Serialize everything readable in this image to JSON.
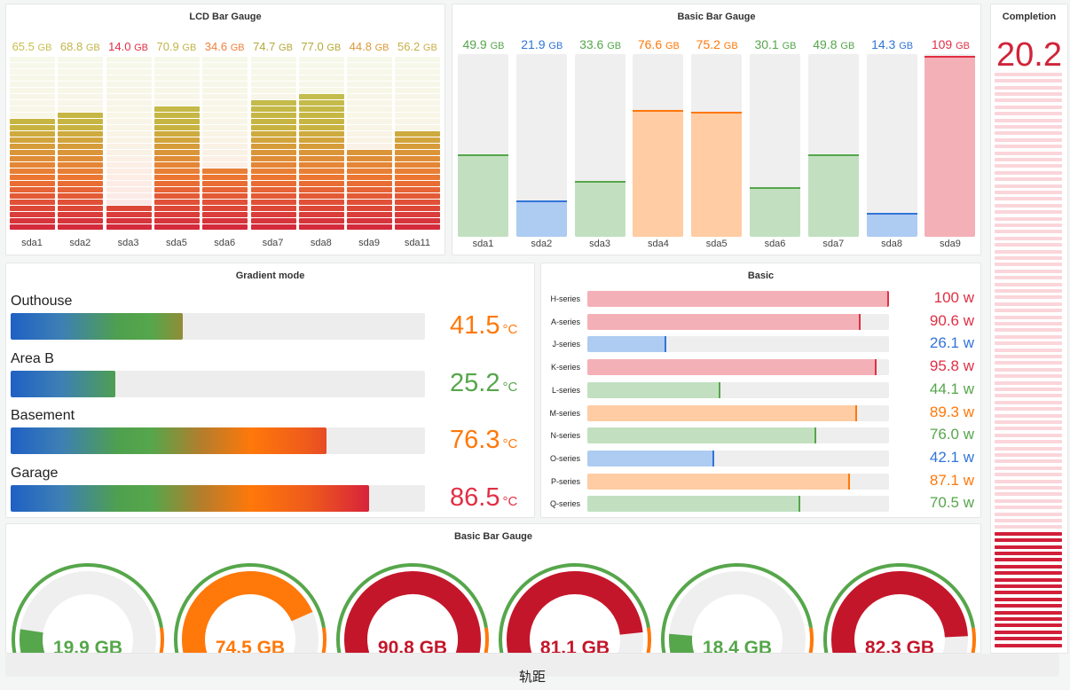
{
  "colors": {
    "green": "#56a64b",
    "green_fill": "#c2e0c0",
    "blue": "#3274d9",
    "blue_fill": "#aecbf2",
    "orange": "#ff780a",
    "orange_fill": "#ffcca3",
    "red": "#e02f44",
    "red_fill": "#f4b0b7",
    "deep_red": "#c4162a",
    "yellow": "#d8c03c"
  },
  "lcd": {
    "title": "LCD Bar Gauge",
    "max": 100,
    "items": [
      {
        "label": "sda1",
        "value": 65.5,
        "num": "65.5",
        "unit": "GB",
        "color": "#c8bf4f"
      },
      {
        "label": "sda2",
        "value": 68.8,
        "num": "68.8",
        "unit": "GB",
        "color": "#c2b449"
      },
      {
        "label": "sda3",
        "value": 14.0,
        "num": "14.0",
        "unit": "GB",
        "color": "#e02f44"
      },
      {
        "label": "sda5",
        "value": 70.9,
        "num": "70.9",
        "unit": "GB",
        "color": "#c2b449"
      },
      {
        "label": "sda6",
        "value": 34.6,
        "num": "34.6",
        "unit": "GB",
        "color": "#f2803a"
      },
      {
        "label": "sda7",
        "value": 74.7,
        "num": "74.7",
        "unit": "GB",
        "color": "#b5a83a"
      },
      {
        "label": "sda8",
        "value": 77.0,
        "num": "77.0",
        "unit": "GB",
        "color": "#b5a83a"
      },
      {
        "label": "sda9",
        "value": 44.8,
        "num": "44.8",
        "unit": "GB",
        "color": "#d89a3c"
      },
      {
        "label": "sda11",
        "value": 56.2,
        "num": "56.2",
        "unit": "GB",
        "color": "#c8af4a"
      }
    ]
  },
  "basic_bar_gauge": {
    "title": "Basic Bar Gauge",
    "max": 110,
    "items": [
      {
        "label": "sda1",
        "value": 49.9,
        "num": "49.9",
        "unit": "GB",
        "tone": "green"
      },
      {
        "label": "sda2",
        "value": 21.9,
        "num": "21.9",
        "unit": "GB",
        "tone": "blue"
      },
      {
        "label": "sda3",
        "value": 33.6,
        "num": "33.6",
        "unit": "GB",
        "tone": "green"
      },
      {
        "label": "sda4",
        "value": 76.6,
        "num": "76.6",
        "unit": "GB",
        "tone": "orange"
      },
      {
        "label": "sda5",
        "value": 75.2,
        "num": "75.2",
        "unit": "GB",
        "tone": "orange"
      },
      {
        "label": "sda6",
        "value": 30.1,
        "num": "30.1",
        "unit": "GB",
        "tone": "green"
      },
      {
        "label": "sda7",
        "value": 49.8,
        "num": "49.8",
        "unit": "GB",
        "tone": "green"
      },
      {
        "label": "sda8",
        "value": 14.3,
        "num": "14.3",
        "unit": "GB",
        "tone": "blue"
      },
      {
        "label": "sda9",
        "value": 109,
        "num": "109",
        "unit": "GB",
        "tone": "red"
      }
    ]
  },
  "completion": {
    "title": "Completion",
    "value": "20.2",
    "fraction": 0.202
  },
  "gradient_mode": {
    "title": "Gradient mode",
    "max": 100,
    "items": [
      {
        "name": "Outhouse",
        "value": 41.5,
        "num": "41.5",
        "unit": "°C",
        "tone": "orange"
      },
      {
        "name": "Area B",
        "value": 25.2,
        "num": "25.2",
        "unit": "°C",
        "tone": "green"
      },
      {
        "name": "Basement",
        "value": 76.3,
        "num": "76.3",
        "unit": "°C",
        "tone": "orange"
      },
      {
        "name": "Garage",
        "value": 86.5,
        "num": "86.5",
        "unit": "°C",
        "tone": "red"
      }
    ]
  },
  "basic": {
    "title": "Basic",
    "max": 100,
    "items": [
      {
        "name": "H-series",
        "value": 100,
        "text": "100 w",
        "tone": "red"
      },
      {
        "name": "A-series",
        "value": 90.6,
        "text": "90.6 w",
        "tone": "red"
      },
      {
        "name": "J-series",
        "value": 26.1,
        "text": "26.1 w",
        "tone": "blue"
      },
      {
        "name": "K-series",
        "value": 95.8,
        "text": "95.8 w",
        "tone": "red"
      },
      {
        "name": "L-series",
        "value": 44.1,
        "text": "44.1 w",
        "tone": "green"
      },
      {
        "name": "M-series",
        "value": 89.3,
        "text": "89.3 w",
        "tone": "orange"
      },
      {
        "name": "N-series",
        "value": 76.0,
        "text": "76.0 w",
        "tone": "green"
      },
      {
        "name": "O-series",
        "value": 42.1,
        "text": "42.1 w",
        "tone": "blue"
      },
      {
        "name": "P-series",
        "value": 87.1,
        "text": "87.1 w",
        "tone": "orange"
      },
      {
        "name": "Q-series",
        "value": 70.5,
        "text": "70.5 w",
        "tone": "green"
      }
    ]
  },
  "gauges": {
    "title": "Basic Bar Gauge",
    "max": 100,
    "items": [
      {
        "value": 19.9,
        "text": "19.9 GB",
        "tone": "green"
      },
      {
        "value": 74.5,
        "text": "74.5 GB",
        "tone": "orange"
      },
      {
        "value": 90.8,
        "text": "90.8 GB",
        "tone": "deep_red"
      },
      {
        "value": 81.1,
        "text": "81.1 GB",
        "tone": "deep_red"
      },
      {
        "value": 18.4,
        "text": "18.4 GB",
        "tone": "green"
      },
      {
        "value": 82.3,
        "text": "82.3 GB",
        "tone": "deep_red"
      }
    ]
  },
  "footer": {
    "text": "轨距"
  }
}
